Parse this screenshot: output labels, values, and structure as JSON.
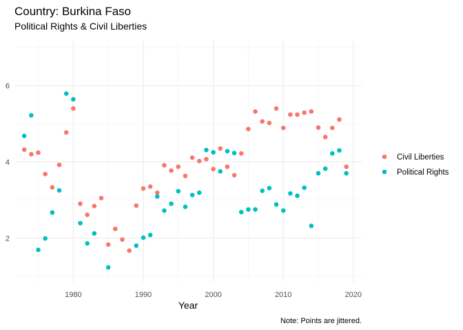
{
  "chart_data": {
    "type": "scatter",
    "title": "Country: Burkina Faso",
    "subtitle": "Political Rights & Civil Liberties",
    "xlabel": "Year",
    "ylabel": "",
    "caption": "Note: Points are jittered.",
    "xlim": [
      1971.7,
      2021.2
    ],
    "ylim": [
      0.85,
      7.2
    ],
    "x_ticks": [
      1980,
      1990,
      2000,
      2010,
      2020
    ],
    "y_ticks": [
      2,
      4,
      6
    ],
    "grid": true,
    "legend_position": "right",
    "series": [
      {
        "name": "Civil Liberties",
        "color": "#F8766D",
        "points": [
          [
            1973,
            4.32
          ],
          [
            1974,
            4.2
          ],
          [
            1975,
            4.24
          ],
          [
            1976,
            3.68
          ],
          [
            1977,
            3.33
          ],
          [
            1978,
            3.92
          ],
          [
            1979,
            4.77
          ],
          [
            1980,
            5.4
          ],
          [
            1981,
            2.9
          ],
          [
            1982,
            2.61
          ],
          [
            1983,
            2.84
          ],
          [
            1984,
            3.05
          ],
          [
            1985,
            1.83
          ],
          [
            1986,
            2.24
          ],
          [
            1987,
            1.96
          ],
          [
            1988,
            1.67
          ],
          [
            1989,
            2.85
          ],
          [
            1990,
            3.3
          ],
          [
            1991,
            3.35
          ],
          [
            1992,
            3.19
          ],
          [
            1993,
            3.91
          ],
          [
            1994,
            3.77
          ],
          [
            1995,
            3.87
          ],
          [
            1996,
            3.63
          ],
          [
            1997,
            4.11
          ],
          [
            1998,
            4.02
          ],
          [
            1999,
            4.07
          ],
          [
            2000,
            3.81
          ],
          [
            2001,
            4.35
          ],
          [
            2002,
            3.87
          ],
          [
            2003,
            3.65
          ],
          [
            2004,
            4.22
          ],
          [
            2005,
            4.86
          ],
          [
            2006,
            5.32
          ],
          [
            2007,
            5.06
          ],
          [
            2008,
            5.02
          ],
          [
            2009,
            5.4
          ],
          [
            2010,
            4.89
          ],
          [
            2011,
            5.24
          ],
          [
            2012,
            5.24
          ],
          [
            2013,
            5.29
          ],
          [
            2014,
            5.32
          ],
          [
            2015,
            4.9
          ],
          [
            2016,
            4.65
          ],
          [
            2017,
            4.89
          ],
          [
            2018,
            5.11
          ],
          [
            2019,
            3.87
          ]
        ]
      },
      {
        "name": "Political Rights",
        "color": "#00BFC4",
        "points": [
          [
            1973,
            4.68
          ],
          [
            1974,
            5.22
          ],
          [
            1975,
            1.69
          ],
          [
            1976,
            1.99
          ],
          [
            1977,
            2.67
          ],
          [
            1978,
            3.25
          ],
          [
            1979,
            5.79
          ],
          [
            1980,
            5.64
          ],
          [
            1981,
            2.39
          ],
          [
            1982,
            1.86
          ],
          [
            1983,
            2.12
          ],
          [
            1985,
            1.23
          ],
          [
            1989,
            1.8
          ],
          [
            1990,
            2.01
          ],
          [
            1991,
            2.08
          ],
          [
            1992,
            3.09
          ],
          [
            1993,
            2.72
          ],
          [
            1994,
            2.9
          ],
          [
            1995,
            3.23
          ],
          [
            1996,
            2.82
          ],
          [
            1997,
            3.13
          ],
          [
            1998,
            3.19
          ],
          [
            1999,
            4.31
          ],
          [
            2000,
            4.25
          ],
          [
            2001,
            3.75
          ],
          [
            2002,
            4.28
          ],
          [
            2003,
            4.23
          ],
          [
            2004,
            2.68
          ],
          [
            2005,
            2.75
          ],
          [
            2006,
            2.75
          ],
          [
            2007,
            3.24
          ],
          [
            2008,
            3.31
          ],
          [
            2009,
            2.88
          ],
          [
            2010,
            2.72
          ],
          [
            2011,
            3.17
          ],
          [
            2012,
            3.11
          ],
          [
            2013,
            3.32
          ],
          [
            2014,
            2.32
          ],
          [
            2015,
            3.7
          ],
          [
            2016,
            3.82
          ],
          [
            2017,
            4.22
          ],
          [
            2018,
            4.3
          ],
          [
            2019,
            3.7
          ]
        ]
      }
    ]
  }
}
